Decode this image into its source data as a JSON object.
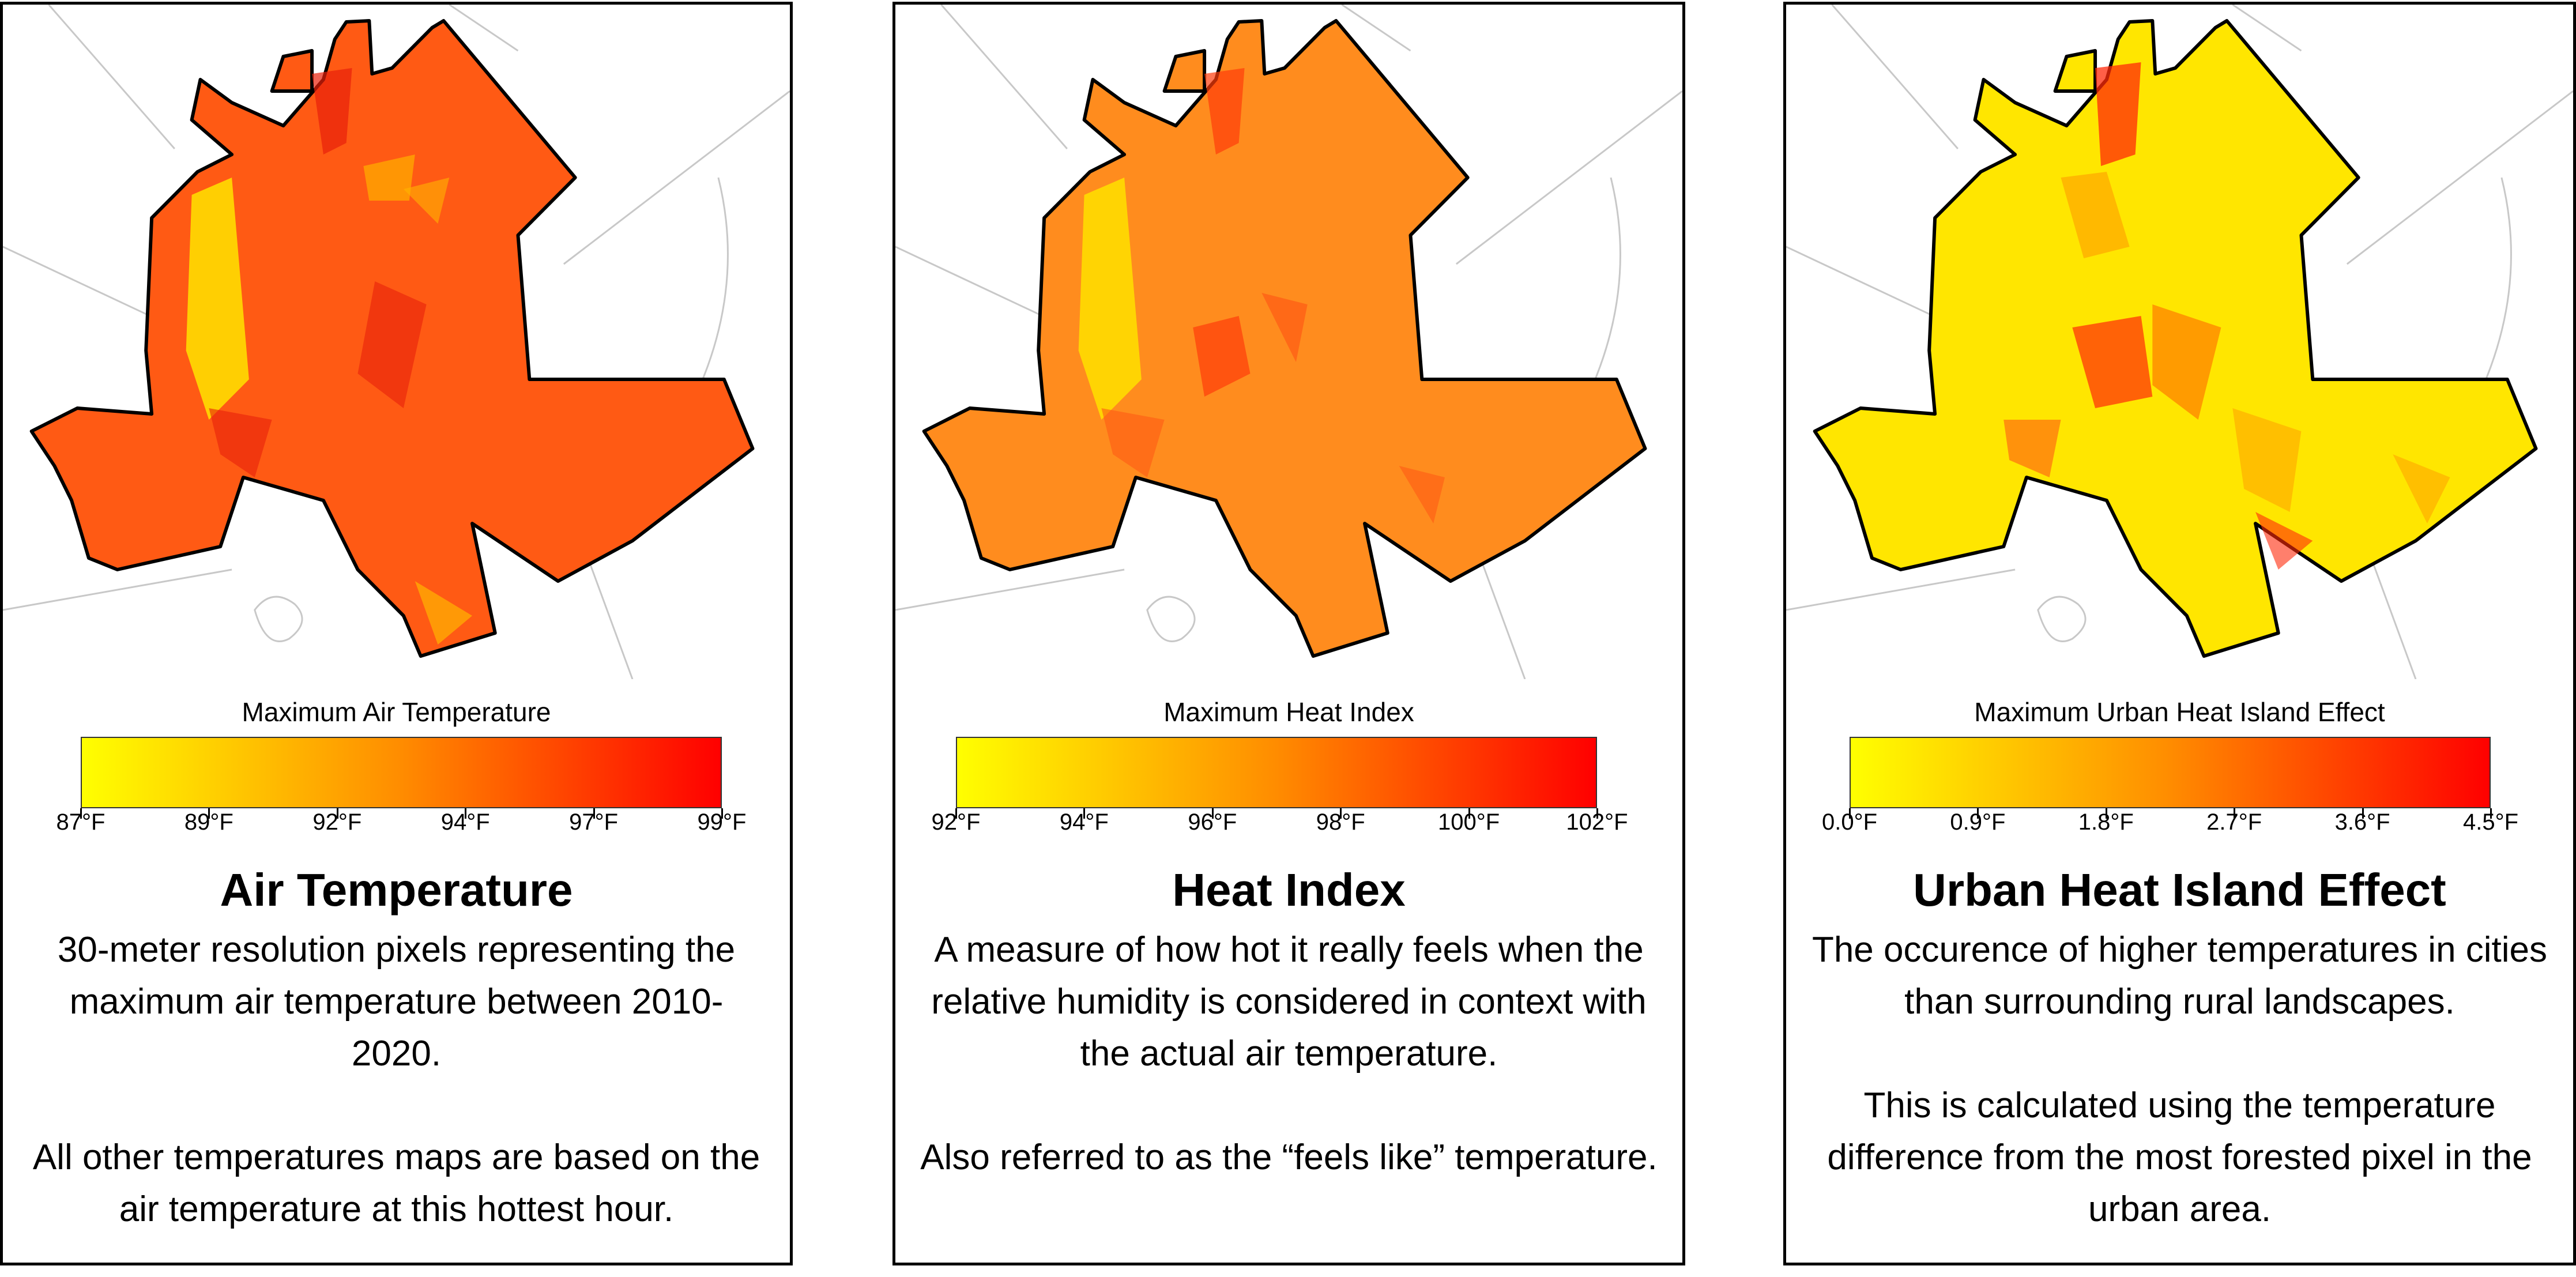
{
  "colors": {
    "scale_low": "#ffff00",
    "scale_mid": "#ff8c00",
    "scale_high": "#ff0000",
    "boundary": "#000000",
    "roads": "#c8c8c8"
  },
  "panels": [
    {
      "legend_title": "Maximum Air Temperature",
      "ticks": [
        "87°F",
        "89°F",
        "92°F",
        "94°F",
        "97°F",
        "99°F"
      ],
      "title": "Air Temperature",
      "paragraphs": [
        "30-meter resolution pixels representing the maximum air temperature between 2010-2020.",
        "All other temperatures maps are based on the air temperature at this hottest hour."
      ],
      "map_fill": "#ff5a14"
    },
    {
      "legend_title": "Maximum Heat Index",
      "ticks": [
        "92°F",
        "94°F",
        "96°F",
        "98°F",
        "100°F",
        "102°F"
      ],
      "title": "Heat Index",
      "paragraphs": [
        "A measure of how hot it really feels when the relative humidity is considered in context with the actual air temperature.",
        "Also referred to as the “feels like” temperature."
      ],
      "map_fill": "#ff8c1e"
    },
    {
      "legend_title": "Maximum Urban Heat Island Effect",
      "ticks": [
        "0.0°F",
        "0.9°F",
        "1.8°F",
        "2.7°F",
        "3.6°F",
        "4.5°F"
      ],
      "title": "Urban Heat Island Effect",
      "paragraphs": [
        "The occurence of higher temperatures in cities than surrounding rural landscapes.",
        "This is calculated using the temperature difference from the most forested pixel in the urban area."
      ],
      "map_fill": "#ffe600"
    }
  ]
}
